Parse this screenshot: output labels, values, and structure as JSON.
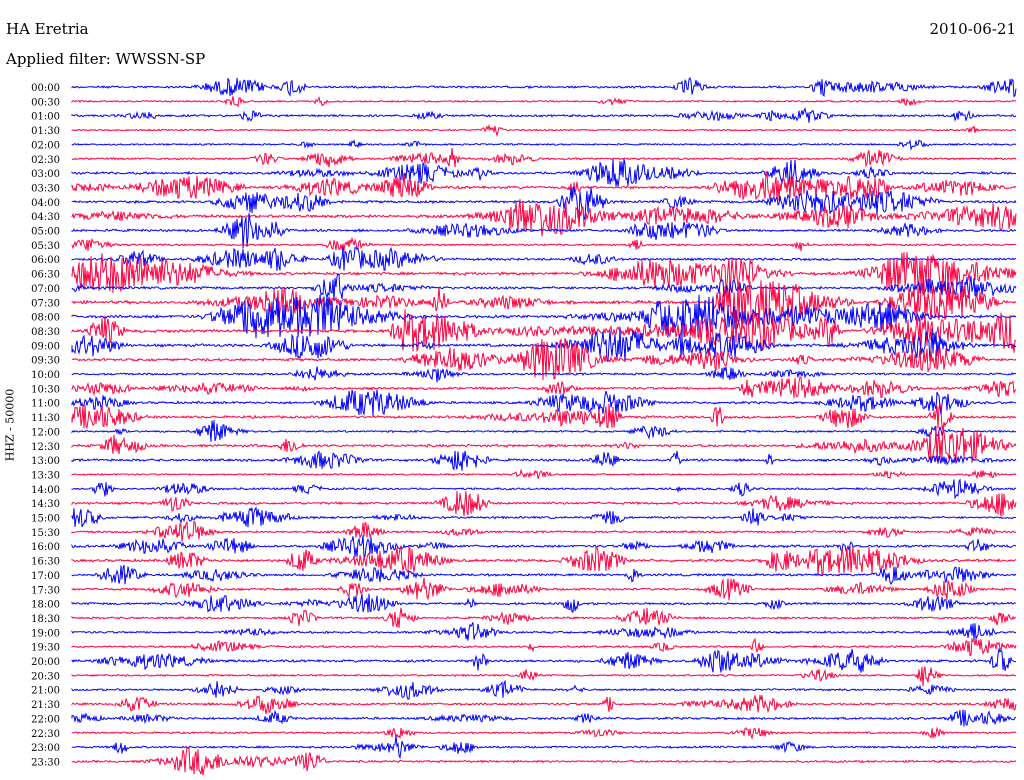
{
  "header": {
    "station": "HA Eretria",
    "date": "2010-06-21",
    "filter": "Applied filter: WWSSN-SP"
  },
  "chart_data": {
    "type": "line",
    "title": "HA Eretria",
    "ylabel": "HHZ - 50000",
    "date": "2010-06-21",
    "filter": "WWSSN-SP",
    "rows": [
      "00:00",
      "00:30",
      "01:00",
      "01:30",
      "02:00",
      "02:30",
      "03:00",
      "03:30",
      "04:00",
      "04:30",
      "05:00",
      "05:30",
      "06:00",
      "06:30",
      "07:00",
      "07:30",
      "08:00",
      "08:30",
      "09:00",
      "09:30",
      "10:00",
      "10:30",
      "11:00",
      "11:30",
      "12:00",
      "12:30",
      "13:00",
      "13:30",
      "14:00",
      "14:30",
      "15:00",
      "15:30",
      "16:00",
      "16:30",
      "17:00",
      "17:30",
      "18:00",
      "18:30",
      "19:00",
      "19:30",
      "20:00",
      "20:30",
      "21:00",
      "21:30",
      "22:00",
      "22:30",
      "23:00",
      "23:30"
    ],
    "colors": {
      "even": "#0000ff",
      "odd": "#ff0040"
    },
    "activity": [
      1.5,
      0.5,
      1.6,
      0.3,
      0.5,
      1.2,
      2.0,
      2.5,
      2.0,
      2.8,
      2.0,
      0.8,
      1.8,
      2.6,
      2.2,
      3.0,
      3.0,
      3.0,
      2.5,
      2.2,
      1.2,
      2.0,
      1.8,
      2.0,
      1.0,
      2.2,
      1.8,
      0.6,
      1.2,
      1.8,
      1.6,
      1.2,
      2.0,
      2.2,
      1.6,
      1.6,
      1.6,
      1.2,
      1.4,
      1.2,
      2.0,
      0.8,
      1.2,
      1.4,
      1.6,
      0.8,
      1.2,
      1.4
    ]
  }
}
